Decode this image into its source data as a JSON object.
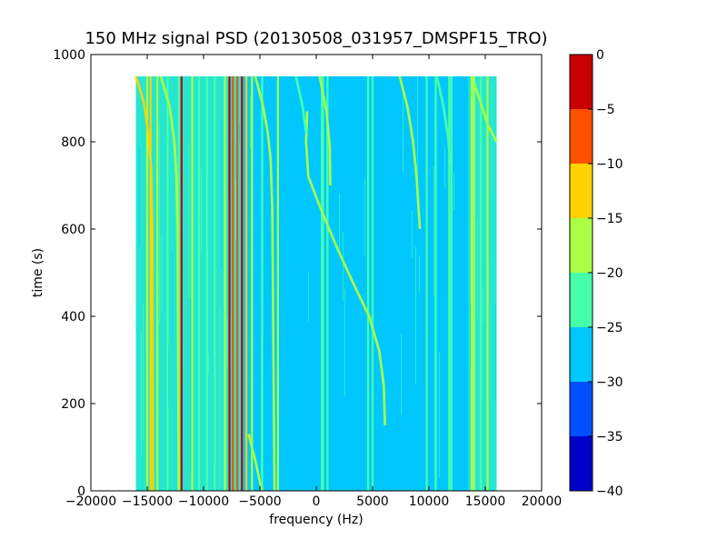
{
  "chart_data": {
    "type": "heatmap",
    "title": "150 MHz signal PSD (20130508_031957_DMSPF15_TRO)",
    "xlabel": "frequency (Hz)",
    "ylabel": "time (s)",
    "xlim": [
      -20000,
      20000
    ],
    "ylim": [
      0,
      1000
    ],
    "x_ticks": [
      -20000,
      -15000,
      -10000,
      -5000,
      0,
      5000,
      10000,
      15000,
      20000
    ],
    "y_ticks": [
      0,
      200,
      400,
      600,
      800,
      1000
    ],
    "data_extent": {
      "x": [
        -16000,
        16000
      ],
      "y": [
        0,
        950
      ]
    },
    "colorbar": {
      "range": [
        -40,
        0
      ],
      "levels": [
        -40,
        -35,
        -30,
        -25,
        -20,
        -15,
        -10,
        -5,
        0
      ],
      "ticks": [
        0,
        -5,
        -10,
        -15,
        -20,
        -25,
        -30,
        -35,
        -40
      ],
      "colors": [
        "#0000cd",
        "#0050ff",
        "#00c8ff",
        "#46ffaa",
        "#aaff46",
        "#ffd200",
        "#ff5000",
        "#c80000"
      ]
    },
    "background_level": -28,
    "band_levels": [
      {
        "x": [
          -16000,
          -6500
        ],
        "level": -22
      },
      {
        "x": [
          13500,
          16000
        ],
        "level": -24
      }
    ],
    "vertical_lines": [
      {
        "x": -15000,
        "level": -18
      },
      {
        "x": -14700,
        "level": -12
      },
      {
        "x": -14100,
        "level": -18
      },
      {
        "x": -13200,
        "level": -23
      },
      {
        "x": -12200,
        "level": -24
      },
      {
        "x": -11950,
        "level": -3
      },
      {
        "x": -11000,
        "level": -20
      },
      {
        "x": -10400,
        "level": -24
      },
      {
        "x": -9700,
        "level": -23
      },
      {
        "x": -9000,
        "level": -22
      },
      {
        "x": -8100,
        "level": -20
      },
      {
        "x": -7700,
        "level": -3
      },
      {
        "x": -7400,
        "level": -6
      },
      {
        "x": -7000,
        "level": -10
      },
      {
        "x": -6600,
        "level": -5
      },
      {
        "x": -6200,
        "level": -14
      },
      {
        "x": -5700,
        "level": -18
      },
      {
        "x": -4800,
        "level": -23
      },
      {
        "x": -3400,
        "level": -16
      },
      {
        "x": 500,
        "level": -23
      },
      {
        "x": 600,
        "level": -23
      },
      {
        "x": 1000,
        "level": -23
      },
      {
        "x": 4600,
        "level": -24
      },
      {
        "x": 5000,
        "level": -24
      },
      {
        "x": 9800,
        "level": -23
      },
      {
        "x": 10600,
        "level": -23
      },
      {
        "x": 11800,
        "level": -23
      },
      {
        "x": 12000,
        "level": -23
      },
      {
        "x": 13800,
        "level": -18
      },
      {
        "x": 14000,
        "level": -16
      },
      {
        "x": 14600,
        "level": -22
      },
      {
        "x": 15200,
        "level": -20
      }
    ],
    "traces": [
      {
        "level": -17,
        "points": [
          [
            -800,
            870
          ],
          [
            -900,
            800
          ],
          [
            -700,
            720
          ],
          [
            500,
            640
          ],
          [
            1800,
            560
          ],
          [
            3200,
            480
          ],
          [
            4700,
            400
          ],
          [
            5600,
            320
          ],
          [
            6000,
            240
          ],
          [
            6100,
            150
          ]
        ]
      },
      {
        "level": -12,
        "points": [
          [
            -16000,
            950
          ],
          [
            -15300,
            890
          ],
          [
            -14900,
            820
          ],
          [
            -14650,
            740
          ],
          [
            -14550,
            600
          ],
          [
            -14500,
            0
          ]
        ]
      },
      {
        "level": -20,
        "points": [
          [
            -13800,
            950
          ],
          [
            -13000,
            880
          ],
          [
            -12600,
            800
          ],
          [
            -12400,
            720
          ],
          [
            -12300,
            600
          ],
          [
            -12200,
            0
          ]
        ]
      },
      {
        "level": -19,
        "points": [
          [
            -5400,
            950
          ],
          [
            -4700,
            880
          ],
          [
            -4300,
            820
          ],
          [
            -4050,
            760
          ],
          [
            -3900,
            650
          ],
          [
            -3700,
            0
          ]
        ]
      },
      {
        "level": -21,
        "points": [
          [
            -1800,
            950
          ],
          [
            -1200,
            880
          ],
          [
            -900,
            820
          ]
        ]
      },
      {
        "level": -18,
        "points": [
          [
            300,
            950
          ],
          [
            900,
            870
          ],
          [
            1200,
            790
          ],
          [
            1250,
            700
          ]
        ]
      },
      {
        "level": -18,
        "points": [
          [
            7400,
            950
          ],
          [
            8100,
            880
          ],
          [
            8600,
            800
          ],
          [
            8900,
            720
          ],
          [
            9100,
            640
          ],
          [
            9200,
            600
          ]
        ]
      },
      {
        "level": -23,
        "points": [
          [
            10700,
            950
          ],
          [
            11300,
            880
          ],
          [
            11700,
            810
          ],
          [
            11900,
            750
          ]
        ]
      },
      {
        "level": -19,
        "points": [
          [
            13800,
            950
          ],
          [
            14600,
            890
          ],
          [
            15200,
            840
          ],
          [
            16000,
            800
          ]
        ]
      },
      {
        "level": -18,
        "points": [
          [
            -6000,
            130
          ],
          [
            -5400,
            70
          ],
          [
            -5000,
            20
          ],
          [
            -4800,
            0
          ]
        ]
      }
    ]
  }
}
